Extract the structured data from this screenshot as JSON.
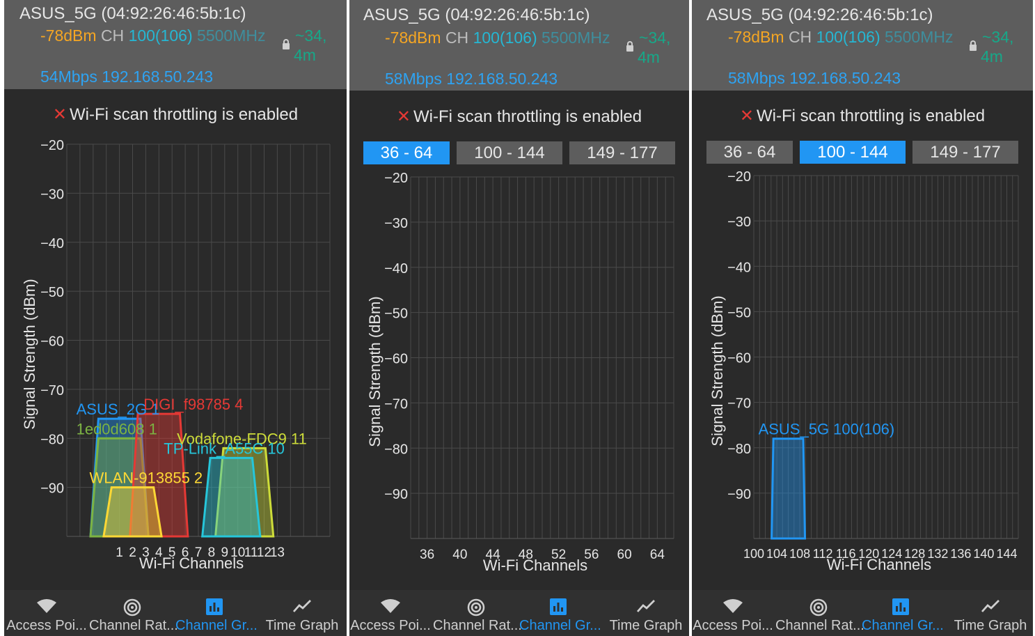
{
  "panels": [
    {
      "header": {
        "ssid": "ASUS_5G (04:92:26:46:5b:1c)",
        "signal": "-78dBm",
        "ch_label": "CH",
        "channel": "100(106)",
        "freq": "5500MHz",
        "distance": "~34,",
        "distance_unit": "4m",
        "speed_ip": "54Mbps 192.168.50.243"
      },
      "scan_status": "Wi-Fi scan throttling is enabled",
      "bands": []
    },
    {
      "header": {
        "ssid": "ASUS_5G (04:92:26:46:5b:1c)",
        "signal": "-78dBm",
        "ch_label": "CH",
        "channel": "100(106)",
        "freq": "5500MHz",
        "distance": "~34,",
        "distance_unit": "4m",
        "speed_ip": "58Mbps 192.168.50.243"
      },
      "scan_status": "Wi-Fi scan throttling is enabled",
      "bands": [
        {
          "label": "36 - 64",
          "selected": true
        },
        {
          "label": "100 - 144",
          "selected": false
        },
        {
          "label": "149 - 177",
          "selected": false
        }
      ]
    },
    {
      "header": {
        "ssid": "ASUS_5G (04:92:26:46:5b:1c)",
        "signal": "-78dBm",
        "ch_label": "CH",
        "channel": "100(106)",
        "freq": "5500MHz",
        "distance": "~34,",
        "distance_unit": "4m",
        "speed_ip": "58Mbps 192.168.50.243"
      },
      "scan_status": "Wi-Fi scan throttling is enabled",
      "bands": [
        {
          "label": "36 - 64",
          "selected": false
        },
        {
          "label": "100 - 144",
          "selected": true
        },
        {
          "label": "149 - 177",
          "selected": false
        }
      ]
    }
  ],
  "nav": [
    {
      "label": "Access Poi...",
      "icon": "wifi-icon",
      "selected": false
    },
    {
      "label": "Channel Rat...",
      "icon": "radar-icon",
      "selected": false
    },
    {
      "label": "Channel Gr...",
      "icon": "bar-chart-icon",
      "selected": true
    },
    {
      "label": "Time Graph",
      "icon": "line-graph-icon",
      "selected": false
    }
  ],
  "chart_data": [
    {
      "type": "area",
      "xlabel": "Wi-Fi Channels",
      "ylabel": "Signal Strength (dBm)",
      "ylim": [
        -100,
        -20
      ],
      "yticks": [
        -20,
        -30,
        -40,
        -50,
        -60,
        -70,
        -80,
        -90
      ],
      "x_range": [
        -3,
        17
      ],
      "xticks": [
        "1",
        "2",
        "3",
        "4",
        "5",
        "6",
        "7",
        "8",
        "9",
        "10",
        "11",
        "12",
        "13"
      ],
      "xtick_values": [
        1,
        2,
        3,
        4,
        5,
        6,
        7,
        8,
        9,
        10,
        11,
        12,
        13
      ],
      "grid": true,
      "series": [
        {
          "name": "ASUS_2G 1",
          "channel": 1,
          "center": 1,
          "signal": -76,
          "color": "#2196f3"
        },
        {
          "name": "1ed0d608 1",
          "channel": 1,
          "center": 1,
          "signal": -80,
          "color": "#7cb342"
        },
        {
          "name": "DIGI_f98785 4",
          "channel": 4,
          "center": 4,
          "signal": -75,
          "color": "#e53935"
        },
        {
          "name": "WLAN-913855 2",
          "channel": 2,
          "center": 2,
          "signal": -90,
          "color": "#fdd835"
        },
        {
          "name": "Vodafone-FDC9 11",
          "channel": 11,
          "center": 10.5,
          "signal": -82,
          "color": "#cddc39"
        },
        {
          "name": "TP-Link_A55C 10",
          "channel": 10,
          "center": 9.5,
          "signal": -84,
          "color": "#26c6da"
        }
      ]
    },
    {
      "type": "area",
      "xlabel": "Wi-Fi Channels",
      "ylabel": "Signal Strength (dBm)",
      "ylim": [
        -100,
        -20
      ],
      "yticks": [
        -20,
        -30,
        -40,
        -50,
        -60,
        -70,
        -80,
        -90
      ],
      "x_range": [
        34,
        66
      ],
      "xticks": [
        "36",
        "40",
        "44",
        "48",
        "52",
        "56",
        "60",
        "64"
      ],
      "xtick_values": [
        36,
        40,
        44,
        48,
        52,
        56,
        60,
        64
      ],
      "grid": true,
      "series": []
    },
    {
      "type": "area",
      "xlabel": "Wi-Fi Channels",
      "ylabel": "Signal Strength (dBm)",
      "ylim": [
        -100,
        -20
      ],
      "yticks": [
        -20,
        -30,
        -40,
        -50,
        -60,
        -70,
        -80,
        -90
      ],
      "x_range": [
        100,
        146
      ],
      "xticks": [
        "100",
        "104",
        "108",
        "112",
        "116",
        "120",
        "124",
        "128",
        "132",
        "136",
        "140",
        "144"
      ],
      "xtick_values": [
        100,
        104,
        108,
        112,
        116,
        120,
        124,
        128,
        132,
        136,
        140,
        144
      ],
      "grid": true,
      "series": [
        {
          "name": "ASUS_5G 100(106)",
          "channel": 100,
          "center": 106,
          "signal": -78,
          "color": "#2196f3"
        }
      ]
    }
  ]
}
